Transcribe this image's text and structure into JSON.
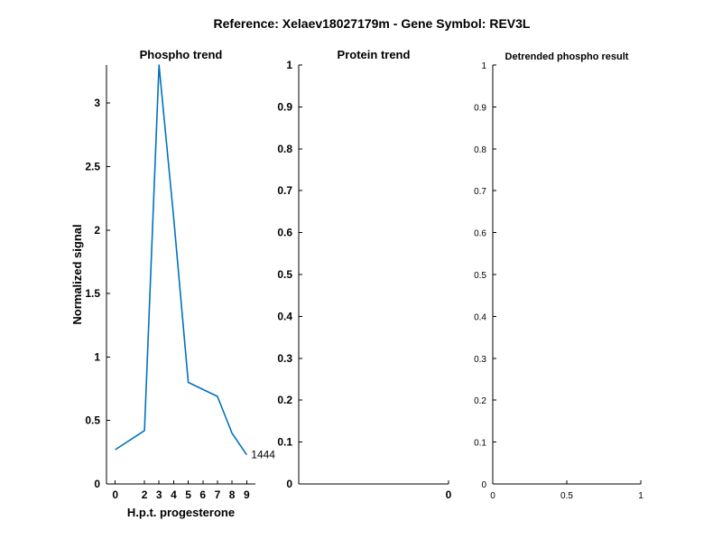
{
  "figure_title": "Reference:  Xelaev18027179m - Gene Symbol:  REV3L",
  "colors": {
    "series": "#0072BD",
    "axis": "#000000"
  },
  "chart_data": [
    {
      "type": "line",
      "title": "Phospho trend",
      "xlabel": "H.p.t. progesterone",
      "ylabel": "Normalized signal",
      "xlim": [
        -0.6,
        9.6
      ],
      "ylim": [
        0,
        3.3
      ],
      "xticks": [
        0,
        2,
        3,
        4,
        5,
        6,
        7,
        8,
        9
      ],
      "yticks": [
        0,
        0.5,
        1,
        1.5,
        2,
        2.5,
        3
      ],
      "grid": false,
      "series": [
        {
          "x": [
            0,
            2,
            3,
            4,
            5,
            7,
            8,
            9
          ],
          "y": [
            0.27,
            0.42,
            3.3,
            2.1,
            0.8,
            0.69,
            0.4,
            0.23
          ],
          "label": "1444"
        }
      ]
    },
    {
      "type": "line",
      "title": "Protein trend",
      "xlabel": "",
      "ylabel": "",
      "xlim": [
        -1,
        0
      ],
      "ylim": [
        0,
        1
      ],
      "xticks": [
        0
      ],
      "yticks": [
        0,
        0.1,
        0.2,
        0.3,
        0.4,
        0.5,
        0.6,
        0.7,
        0.8,
        0.9,
        1
      ],
      "grid": false,
      "series": []
    },
    {
      "type": "line",
      "title": "Detrended phospho result",
      "xlabel": "",
      "ylabel": "",
      "xlim": [
        0,
        1
      ],
      "ylim": [
        0,
        1
      ],
      "xticks": [
        0,
        0.5,
        1
      ],
      "yticks": [
        0,
        0.1,
        0.2,
        0.3,
        0.4,
        0.5,
        0.6,
        0.7,
        0.8,
        0.9,
        1
      ],
      "grid": false,
      "series": []
    }
  ]
}
